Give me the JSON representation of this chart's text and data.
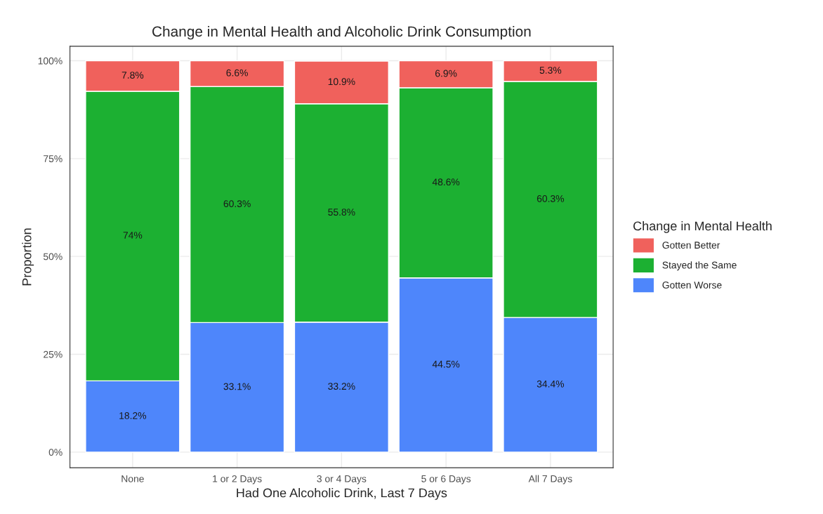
{
  "chart_data": {
    "type": "bar",
    "title": "Change in Mental Health and Alcoholic Drink Consumption",
    "xlabel": "Had One Alcoholic Drink, Last 7 Days",
    "ylabel": "Proportion",
    "legend_title": "Change in Mental Health",
    "categories": [
      "None",
      "1 or 2 Days",
      "3 or 4 Days",
      "5 or 6 Days",
      "All 7 Days"
    ],
    "stacked": true,
    "series": [
      {
        "name": "Gotten Worse",
        "color": "#4e86fb",
        "values": [
          18.2,
          33.1,
          33.2,
          44.5,
          34.4
        ],
        "value_labels": [
          "18.2%",
          "33.1%",
          "33.2%",
          "44.5%",
          "34.4%"
        ]
      },
      {
        "name": "Stayed the Same",
        "color": "#1cb032",
        "values": [
          74,
          60.3,
          55.8,
          48.6,
          60.3
        ],
        "value_labels": [
          "74%",
          "60.3%",
          "55.8%",
          "48.6%",
          "60.3%"
        ]
      },
      {
        "name": "Gotten Better",
        "color": "#f0615c",
        "values": [
          7.8,
          6.6,
          10.9,
          6.9,
          5.3
        ],
        "value_labels": [
          "7.8%",
          "6.6%",
          "10.9%",
          "6.9%",
          "5.3%"
        ]
      }
    ],
    "ylim": [
      -4,
      103.7
    ],
    "yticks": [
      {
        "value": 0,
        "label": "0%"
      },
      {
        "value": 25,
        "label": "25%"
      },
      {
        "value": 50,
        "label": "50%"
      },
      {
        "value": 75,
        "label": "75%"
      },
      {
        "value": 100,
        "label": "100%"
      }
    ],
    "grid": true,
    "legend": "right"
  }
}
